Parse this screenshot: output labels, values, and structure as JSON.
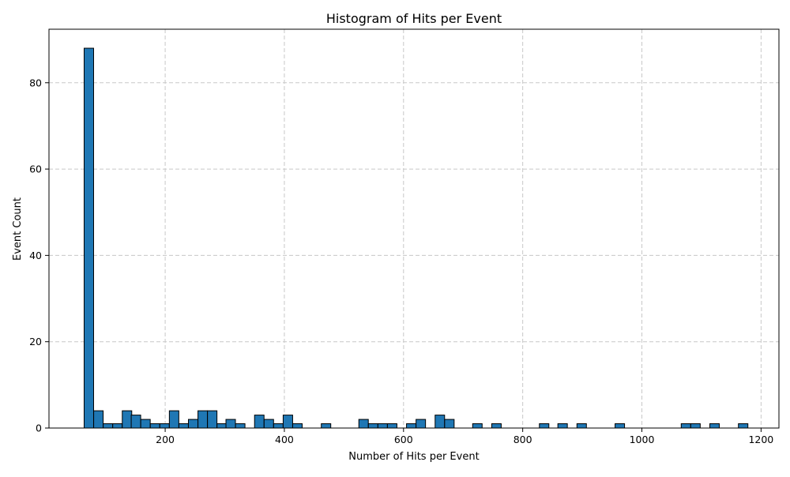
{
  "chart_data": {
    "type": "bar",
    "title": "Histogram of Hits per Event",
    "xlabel": "Number of Hits per Event",
    "ylabel": "Event Count",
    "xlim": [
      5,
      1230
    ],
    "ylim": [
      0,
      92.4
    ],
    "xticks": [
      200,
      400,
      600,
      800,
      1000,
      1200
    ],
    "yticks": [
      0,
      20,
      40,
      60,
      80
    ],
    "grid": true,
    "bin_width": 15.9,
    "bar_color": "#1f77b4",
    "edge_color": "#000000",
    "grid_color": "#c8c8c8",
    "bins_left": [
      64,
      80,
      96,
      112,
      128,
      143,
      159,
      175,
      191,
      207,
      223,
      239,
      255,
      271,
      287,
      302,
      318,
      334,
      350,
      366,
      382,
      398,
      414,
      430,
      446,
      462,
      478,
      494,
      509,
      525,
      541,
      557,
      573,
      589,
      605,
      621,
      637,
      653,
      669,
      685,
      700,
      716,
      732,
      748,
      764,
      780,
      796,
      812,
      828,
      844,
      859,
      875,
      891,
      907,
      923,
      939,
      955,
      971,
      987,
      1003,
      1018,
      1034,
      1050,
      1066,
      1082,
      1098,
      1114,
      1130,
      1146,
      1162
    ],
    "counts": [
      88,
      4,
      1,
      1,
      4,
      3,
      2,
      1,
      1,
      4,
      1,
      2,
      4,
      4,
      1,
      2,
      1,
      0,
      3,
      2,
      1,
      3,
      1,
      0,
      0,
      1,
      0,
      0,
      0,
      2,
      1,
      1,
      1,
      0,
      1,
      2,
      0,
      3,
      2,
      0,
      0,
      1,
      0,
      1,
      0,
      0,
      0,
      0,
      1,
      0,
      1,
      0,
      1,
      0,
      0,
      0,
      1,
      0,
      0,
      0,
      0,
      0,
      0,
      1,
      1,
      0,
      1,
      0,
      0,
      1
    ]
  }
}
